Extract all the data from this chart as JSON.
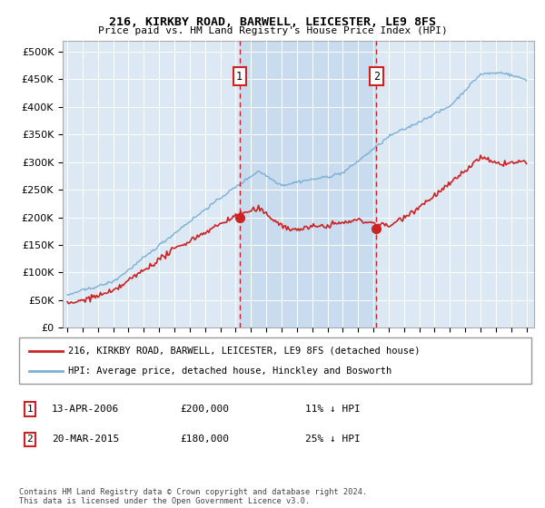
{
  "title": "216, KIRKBY ROAD, BARWELL, LEICESTER, LE9 8FS",
  "subtitle": "Price paid vs. HM Land Registry's House Price Index (HPI)",
  "ylim": [
    0,
    520000
  ],
  "yticks": [
    0,
    50000,
    100000,
    150000,
    200000,
    250000,
    300000,
    350000,
    400000,
    450000,
    500000
  ],
  "yticklabels": [
    "£0",
    "£50K",
    "£100K",
    "£150K",
    "£200K",
    "£250K",
    "£300K",
    "£350K",
    "£400K",
    "£450K",
    "£500K"
  ],
  "hpi_color": "#7bafd4",
  "price_color": "#cc2222",
  "vline_color": "#cc2222",
  "plot_bg": "#dce9f5",
  "shade_color": "#c5d9ee",
  "legend_label_red": "216, KIRKBY ROAD, BARWELL, LEICESTER, LE9 8FS (detached house)",
  "legend_label_blue": "HPI: Average price, detached house, Hinckley and Bosworth",
  "annotation1_date": "13-APR-2006",
  "annotation1_price": "£200,000",
  "annotation1_pct": "11% ↓ HPI",
  "annotation2_date": "20-MAR-2015",
  "annotation2_price": "£180,000",
  "annotation2_pct": "25% ↓ HPI",
  "footer": "Contains HM Land Registry data © Crown copyright and database right 2024.\nThis data is licensed under the Open Government Licence v3.0.",
  "sale1_x": 2006.25,
  "sale1_y": 200000,
  "sale2_x": 2015.2,
  "sale2_y": 180000,
  "xlim_left": 1994.7,
  "xlim_right": 2025.5
}
